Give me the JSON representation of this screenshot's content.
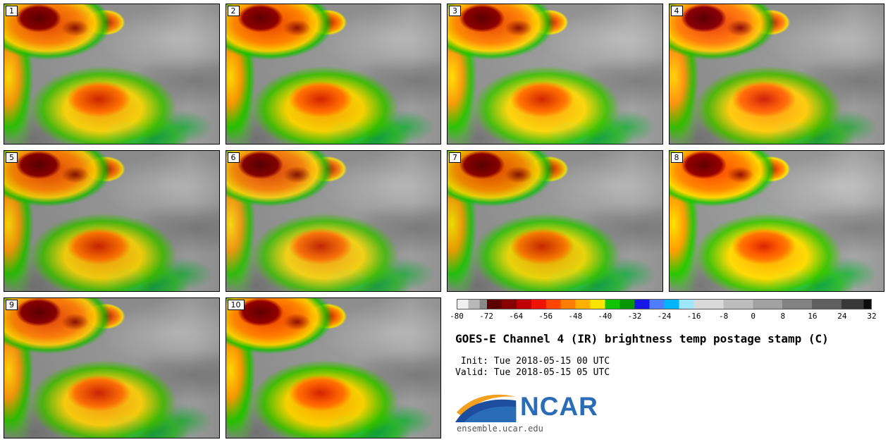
{
  "chart_data": {
    "type": "heatmap",
    "title": "GOES-E Channel 4 (IR) brightness temp postage stamp (C)",
    "init_label": " Init: Tue 2018-05-15 00 UTC",
    "valid_label": "Valid: Tue 2018-05-15 05 UTC",
    "panel_labels": [
      "1",
      "2",
      "3",
      "4",
      "5",
      "6",
      "7",
      "8",
      "9",
      "10"
    ],
    "variable": "GOES-E Channel 4 (IR) brightness temperature",
    "units": "C",
    "colorbar": {
      "range": [
        -80,
        32
      ],
      "tick_step": 8,
      "ticks": [
        -80,
        -72,
        -64,
        -56,
        -48,
        -40,
        -32,
        -24,
        -16,
        -8,
        0,
        8,
        16,
        24,
        32
      ],
      "stops": [
        [
          -80,
          "#f0f0f0"
        ],
        [
          -77,
          "#b8b8b8"
        ],
        [
          -74,
          "#898989"
        ],
        [
          -72,
          "#5c0000"
        ],
        [
          -68,
          "#860000"
        ],
        [
          -64,
          "#c00000"
        ],
        [
          -60,
          "#ee1400"
        ],
        [
          -56,
          "#ff4600"
        ],
        [
          -52,
          "#ff7d00"
        ],
        [
          -48,
          "#ffb000"
        ],
        [
          -44,
          "#ffe400"
        ],
        [
          -40,
          "#12c400"
        ],
        [
          -36,
          "#089600"
        ],
        [
          -32,
          "#1616e8"
        ],
        [
          -28,
          "#4f7dff"
        ],
        [
          -24,
          "#00b4ff"
        ],
        [
          -20,
          "#9fe6ff"
        ],
        [
          -16,
          "#d9d9d9"
        ],
        [
          -8,
          "#bdbdbd"
        ],
        [
          0,
          "#a1a1a1"
        ],
        [
          8,
          "#828282"
        ],
        [
          16,
          "#5f5f5f"
        ],
        [
          24,
          "#383838"
        ],
        [
          30,
          "#0d0d0d"
        ]
      ]
    }
  },
  "logo": {
    "text": "NCAR",
    "site": "ensemble.ucar.edu",
    "blue": "#2a6cb5",
    "navy": "#1c4e9d",
    "orange": "#f2a01e"
  }
}
